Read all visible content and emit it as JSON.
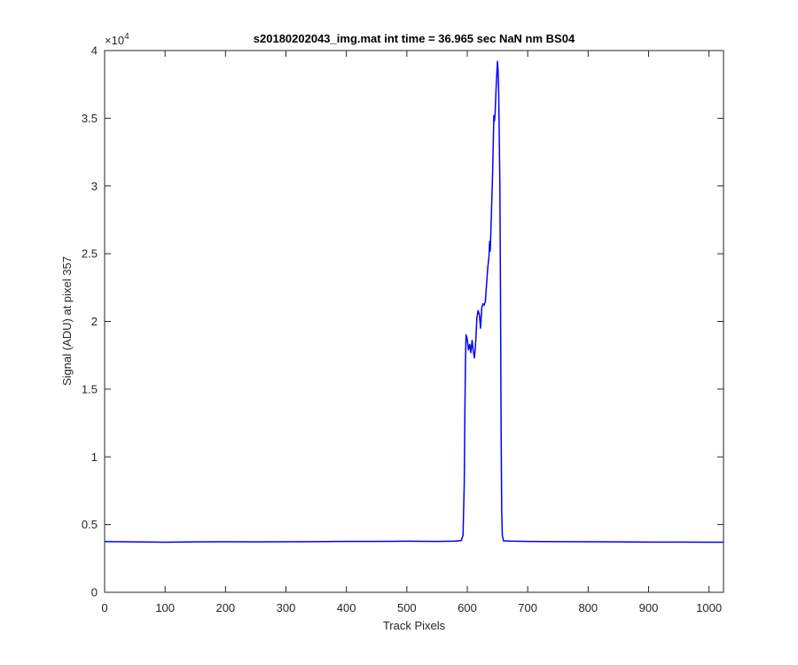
{
  "chart_data": {
    "type": "line",
    "title": "s20180202043_img.mat int time = 36.965 sec  NaN nm BS04",
    "xlabel": "Track Pixels",
    "ylabel": "Signal (ADU) at pixel 357",
    "xlim": [
      0,
      1024
    ],
    "ylim": [
      0,
      40000
    ],
    "xticks": [
      0,
      100,
      200,
      300,
      400,
      500,
      600,
      700,
      800,
      900,
      1000
    ],
    "yticks": [
      0,
      0.5,
      1,
      1.5,
      2,
      2.5,
      3,
      3.5,
      4
    ],
    "ytick_scale": 10000,
    "y_exponent_base": "×10",
    "y_exponent_power": "4",
    "grid": false,
    "series": [
      {
        "color": "#0000ff",
        "points": [
          [
            0,
            3750
          ],
          [
            50,
            3720
          ],
          [
            100,
            3700
          ],
          [
            150,
            3720
          ],
          [
            200,
            3730
          ],
          [
            250,
            3720
          ],
          [
            300,
            3730
          ],
          [
            350,
            3740
          ],
          [
            400,
            3760
          ],
          [
            450,
            3760
          ],
          [
            500,
            3770
          ],
          [
            550,
            3760
          ],
          [
            580,
            3780
          ],
          [
            590,
            3820
          ],
          [
            593,
            4200
          ],
          [
            595,
            8000
          ],
          [
            596,
            13000
          ],
          [
            597,
            17000
          ],
          [
            598,
            19000
          ],
          [
            600,
            18700
          ],
          [
            602,
            17900
          ],
          [
            604,
            18300
          ],
          [
            606,
            17700
          ],
          [
            608,
            18600
          ],
          [
            610,
            17800
          ],
          [
            612,
            17300
          ],
          [
            614,
            18500
          ],
          [
            616,
            20300
          ],
          [
            618,
            20800
          ],
          [
            620,
            20500
          ],
          [
            622,
            19500
          ],
          [
            624,
            21000
          ],
          [
            626,
            21300
          ],
          [
            628,
            21200
          ],
          [
            630,
            21500
          ],
          [
            632,
            22800
          ],
          [
            634,
            24000
          ],
          [
            636,
            24800
          ],
          [
            637,
            25900
          ],
          [
            638,
            25200
          ],
          [
            640,
            28000
          ],
          [
            642,
            31000
          ],
          [
            644,
            35200
          ],
          [
            645,
            34800
          ],
          [
            646,
            35300
          ],
          [
            648,
            37500
          ],
          [
            650,
            39200
          ],
          [
            651,
            38500
          ],
          [
            652,
            37000
          ],
          [
            654,
            30000
          ],
          [
            655,
            22000
          ],
          [
            656,
            12000
          ],
          [
            657,
            6000
          ],
          [
            658,
            4200
          ],
          [
            660,
            3800
          ],
          [
            670,
            3780
          ],
          [
            700,
            3760
          ],
          [
            750,
            3740
          ],
          [
            800,
            3730
          ],
          [
            850,
            3720
          ],
          [
            900,
            3710
          ],
          [
            950,
            3710
          ],
          [
            1000,
            3700
          ],
          [
            1024,
            3700
          ]
        ]
      }
    ]
  }
}
